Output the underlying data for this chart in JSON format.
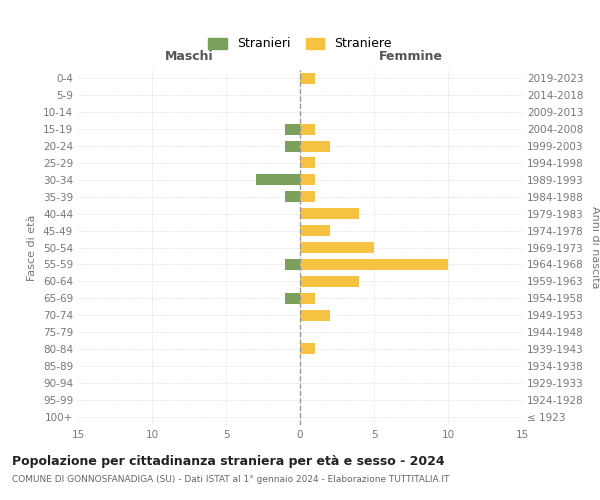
{
  "age_groups": [
    "100+",
    "95-99",
    "90-94",
    "85-89",
    "80-84",
    "75-79",
    "70-74",
    "65-69",
    "60-64",
    "55-59",
    "50-54",
    "45-49",
    "40-44",
    "35-39",
    "30-34",
    "25-29",
    "20-24",
    "15-19",
    "10-14",
    "5-9",
    "0-4"
  ],
  "birth_years": [
    "≤ 1923",
    "1924-1928",
    "1929-1933",
    "1934-1938",
    "1939-1943",
    "1944-1948",
    "1949-1953",
    "1954-1958",
    "1959-1963",
    "1964-1968",
    "1969-1973",
    "1974-1978",
    "1979-1983",
    "1984-1988",
    "1989-1993",
    "1994-1998",
    "1999-2003",
    "2004-2008",
    "2009-2013",
    "2014-2018",
    "2019-2023"
  ],
  "maschi_stranieri": [
    0,
    0,
    0,
    0,
    0,
    0,
    0,
    1,
    0,
    1,
    0,
    0,
    0,
    1,
    3,
    0,
    1,
    1,
    0,
    0,
    0
  ],
  "femmine_straniere": [
    0,
    0,
    0,
    0,
    1,
    0,
    2,
    1,
    4,
    10,
    5,
    2,
    4,
    1,
    1,
    1,
    2,
    1,
    0,
    0,
    1
  ],
  "color_maschi": "#7ba05b",
  "color_femmine": "#f5c242",
  "title": "Popolazione per cittadinanza straniera per età e sesso - 2024",
  "subtitle": "COMUNE DI GONNOSFANADIGA (SU) - Dati ISTAT al 1° gennaio 2024 - Elaborazione TUTTITALIA.IT",
  "label_maschi": "Stranieri",
  "label_femmine": "Straniere",
  "xlabel_left": "Maschi",
  "xlabel_right": "Femmine",
  "ylabel_left": "Fasce di età",
  "ylabel_right": "Anni di nascita",
  "xlim": 15,
  "bg_color": "#ffffff",
  "grid_color": "#cccccc",
  "tick_color": "#777777"
}
